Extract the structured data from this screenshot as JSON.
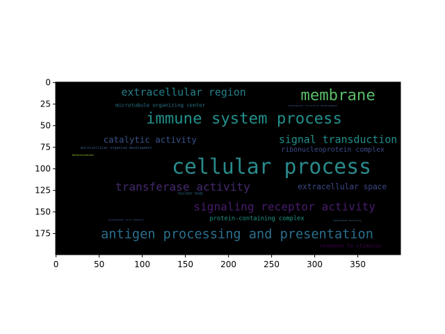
{
  "axes": {
    "x_ticks": [
      "0",
      "50",
      "100",
      "150",
      "200",
      "250",
      "300",
      "350"
    ],
    "y_ticks": [
      "0",
      "25",
      "50",
      "75",
      "100",
      "125",
      "150",
      "175"
    ],
    "x_tick_values": [
      0,
      50,
      100,
      150,
      200,
      250,
      300,
      350
    ],
    "y_tick_values": [
      0,
      25,
      50,
      75,
      100,
      125,
      150,
      175
    ],
    "xlim": [
      -0.5,
      399.5
    ],
    "ylim": [
      199.5,
      -0.5
    ],
    "background": "#000000"
  },
  "words": [
    {
      "text": "cellular process",
      "x": 250,
      "y": 98,
      "size": 24,
      "color": "#2a8a8c"
    },
    {
      "text": "membrane",
      "x": 327,
      "y": 15,
      "size": 18,
      "color": "#5bbd6a"
    },
    {
      "text": "immune system process",
      "x": 218,
      "y": 42,
      "size": 18,
      "color": "#23908c"
    },
    {
      "text": "extracellular region",
      "x": 148,
      "y": 11,
      "size": 12,
      "color": "#26828e"
    },
    {
      "text": "signal transduction",
      "x": 327,
      "y": 66,
      "size": 12,
      "color": "#21908d"
    },
    {
      "text": "catalytic activity",
      "x": 109,
      "y": 66,
      "size": 10,
      "color": "#3b528b"
    },
    {
      "text": "ribonucleoprotein complex",
      "x": 321,
      "y": 78,
      "size": 8,
      "color": "#3e4c8a"
    },
    {
      "text": "transferase activity",
      "x": 147,
      "y": 121,
      "size": 13,
      "color": "#46296f"
    },
    {
      "text": "extracellular space",
      "x": 332,
      "y": 121,
      "size": 9,
      "color": "#3e4989"
    },
    {
      "text": "signaling receptor activity",
      "x": 265,
      "y": 144,
      "size": 13,
      "color": "#481c6e"
    },
    {
      "text": "protein-containing complex",
      "x": 233,
      "y": 158,
      "size": 7,
      "color": "#1f9a8a"
    },
    {
      "text": "antigen processing and presentation",
      "x": 210,
      "y": 176,
      "size": 15,
      "color": "#2b6f8e"
    },
    {
      "text": "response to stimulus",
      "x": 341,
      "y": 189,
      "size": 6,
      "color": "#440154"
    },
    {
      "text": "microtubule organizing center",
      "x": 121,
      "y": 26,
      "size": 6,
      "color": "#2a788e"
    },
    {
      "text": "anatomical structure development",
      "x": 298,
      "y": 27,
      "size": 3,
      "color": "#3b528b"
    },
    {
      "text": "multicellular organism development",
      "x": 70,
      "y": 76,
      "size": 4,
      "color": "#365c8d"
    },
    {
      "text": "keratinization",
      "x": 31,
      "y": 84,
      "size": 3,
      "color": "#a0da39"
    },
    {
      "text": "nuclear body",
      "x": 156,
      "y": 129,
      "size": 4,
      "color": "#2c728e"
    },
    {
      "text": "proteasome core complex",
      "x": 81,
      "y": 159,
      "size": 3,
      "color": "#3d4d8a"
    },
    {
      "text": "hydrolase activity",
      "x": 338,
      "y": 160,
      "size": 3,
      "color": "#31688e"
    }
  ]
}
